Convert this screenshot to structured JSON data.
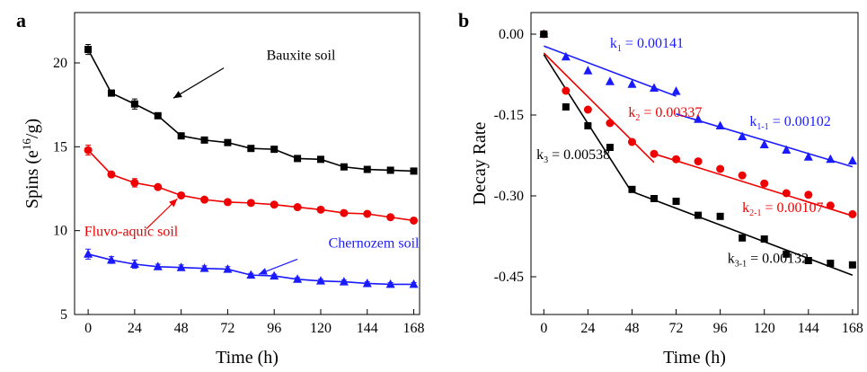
{
  "chart_data": [
    {
      "type": "line",
      "panel_label": "a",
      "xlabel": "Time (h)",
      "ylabel_base": "Spins (e",
      "ylabel_sup": "16",
      "ylabel_tail": "/g)",
      "xlim": [
        -7,
        171
      ],
      "ylim": [
        5,
        23
      ],
      "xticks": [
        0,
        24,
        48,
        72,
        96,
        120,
        144,
        168
      ],
      "yticks": [
        5,
        10,
        15,
        20
      ],
      "x": [
        0,
        12,
        24,
        36,
        48,
        60,
        72,
        84,
        96,
        108,
        120,
        132,
        144,
        156,
        168
      ],
      "series": [
        {
          "name": "Bauxite soil",
          "color": "#000000",
          "marker": "square",
          "values": [
            20.8,
            18.2,
            17.55,
            16.85,
            15.65,
            15.4,
            15.25,
            14.9,
            14.85,
            14.3,
            14.25,
            13.8,
            13.65,
            13.6,
            13.55
          ],
          "errors": [
            0.3,
            0,
            0.3,
            0,
            0,
            0,
            0,
            0,
            0,
            0,
            0,
            0,
            0,
            0,
            0
          ]
        },
        {
          "name": "Fluvo-aquic soil",
          "color": "#ee0000",
          "marker": "circle",
          "values": [
            14.8,
            13.35,
            12.85,
            12.6,
            12.1,
            11.85,
            11.7,
            11.65,
            11.55,
            11.4,
            11.25,
            11.05,
            11.0,
            10.8,
            10.6
          ],
          "errors": [
            0.3,
            0,
            0.25,
            0,
            0.15,
            0,
            0,
            0,
            0,
            0,
            0,
            0,
            0,
            0,
            0
          ]
        },
        {
          "name": "Chernozem soil",
          "color": "#1a1aff",
          "marker": "triangle",
          "values": [
            8.6,
            8.25,
            8.0,
            7.85,
            7.8,
            7.75,
            7.7,
            7.35,
            7.3,
            7.1,
            7.0,
            6.95,
            6.85,
            6.8,
            6.8
          ],
          "errors": [
            0.3,
            0.2,
            0.25,
            0.15,
            0.15,
            0.15,
            0.15,
            0.1,
            0.1,
            0.1,
            0.1,
            0.1,
            0.1,
            0.1,
            0.1
          ]
        }
      ],
      "annotations": [
        {
          "text": "Bauxite soil",
          "color": "#000000",
          "text_at": [
            92,
            20.2
          ],
          "arrow_from": [
            70,
            19.7
          ],
          "arrow_to": [
            44,
            17.9
          ]
        },
        {
          "text": "Fluvo-aquic soil",
          "color": "#ee0000",
          "text_at": [
            -2,
            9.7
          ],
          "arrow_from": [
            30,
            10.1
          ],
          "arrow_to": [
            46,
            11.9
          ]
        },
        {
          "text": "Chernozem soil",
          "color": "#1a1aff",
          "text_at": [
            124,
            9.0
          ],
          "arrow_from": [
            108,
            8.3
          ],
          "arrow_to": [
            88,
            7.4
          ]
        }
      ]
    },
    {
      "type": "scatter",
      "panel_label": "b",
      "xlabel": "Time (h)",
      "ylabel": "Decay Rate",
      "xlim": [
        -7,
        171
      ],
      "ylim": [
        -0.52,
        0.04
      ],
      "xticks": [
        0,
        24,
        48,
        72,
        96,
        120,
        144,
        168
      ],
      "yticks": [
        0.0,
        -0.15,
        -0.3,
        -0.45
      ],
      "ytick_labels": [
        "0.00",
        "-0.15",
        "-0.30",
        "-0.45"
      ],
      "x": [
        0,
        12,
        24,
        36,
        48,
        60,
        72,
        84,
        96,
        108,
        120,
        132,
        144,
        156,
        168
      ],
      "series": [
        {
          "name": "Chernozem soil",
          "color": "#1a1aff",
          "marker": "triangle",
          "x": [
            0,
            12,
            24,
            36,
            48,
            60,
            72,
            84,
            96,
            108,
            120,
            132,
            144,
            156,
            168
          ],
          "values": [
            0.0,
            -0.042,
            -0.068,
            -0.088,
            -0.093,
            -0.1,
            -0.106,
            -0.158,
            -0.17,
            -0.19,
            -0.205,
            -0.215,
            -0.228,
            -0.232,
            -0.235
          ]
        },
        {
          "name": "Fluvo-aquic soil",
          "color": "#ee0000",
          "marker": "circle",
          "x": [
            0,
            12,
            24,
            36,
            48,
            60,
            72,
            84,
            96,
            108,
            120,
            132,
            144,
            156,
            168
          ],
          "values": [
            0.0,
            -0.105,
            -0.14,
            -0.165,
            -0.2,
            -0.222,
            -0.232,
            -0.236,
            -0.25,
            -0.262,
            -0.277,
            -0.295,
            -0.298,
            -0.318,
            -0.334
          ]
        },
        {
          "name": "Bauxite soil",
          "color": "#000000",
          "marker": "square",
          "x": [
            0,
            12,
            24,
            36,
            48,
            60,
            72,
            84,
            96,
            108,
            120,
            132,
            144,
            156,
            168
          ],
          "values": [
            0.0,
            -0.135,
            -0.17,
            -0.21,
            -0.288,
            -0.305,
            -0.31,
            -0.336,
            -0.338,
            -0.378,
            -0.38,
            -0.408,
            -0.42,
            -0.425,
            -0.428
          ]
        }
      ],
      "fits": [
        {
          "color": "#1a1aff",
          "x": [
            0,
            72
          ],
          "y": [
            -0.022,
            -0.115
          ]
        },
        {
          "color": "#1a1aff",
          "x": [
            72,
            168
          ],
          "y": [
            -0.148,
            -0.246
          ]
        },
        {
          "color": "#ee0000",
          "x": [
            0,
            60
          ],
          "y": [
            -0.035,
            -0.238
          ]
        },
        {
          "color": "#ee0000",
          "x": [
            60,
            168
          ],
          "y": [
            -0.222,
            -0.337
          ]
        },
        {
          "color": "#000000",
          "x": [
            0,
            48
          ],
          "y": [
            -0.038,
            -0.294
          ]
        },
        {
          "color": "#000000",
          "x": [
            48,
            168
          ],
          "y": [
            -0.292,
            -0.447
          ]
        }
      ],
      "labels": [
        {
          "k": "k",
          "sub": "1",
          "rest": " = 0.00141",
          "color": "#1a1aff",
          "at": [
            36,
            -0.025
          ]
        },
        {
          "k": "k",
          "sub": "1-1",
          "rest": " = 0.00102",
          "color": "#1a1aff",
          "at": [
            112,
            -0.17
          ]
        },
        {
          "k": "k",
          "sub": "2",
          "rest": " = 0.00337",
          "color": "#ee0000",
          "at": [
            46,
            -0.153
          ]
        },
        {
          "k": "k",
          "sub": "2-1",
          "rest": " = 0.00107",
          "color": "#ee0000",
          "at": [
            108,
            -0.33
          ]
        },
        {
          "k": "k",
          "sub": "3",
          "rest": " = 0.00538",
          "color": "#000000",
          "at": [
            -4,
            -0.232
          ]
        },
        {
          "k": "k",
          "sub": "3-1",
          "rest": " = 0.00132",
          "color": "#000000",
          "at": [
            100,
            -0.424
          ]
        }
      ]
    }
  ]
}
